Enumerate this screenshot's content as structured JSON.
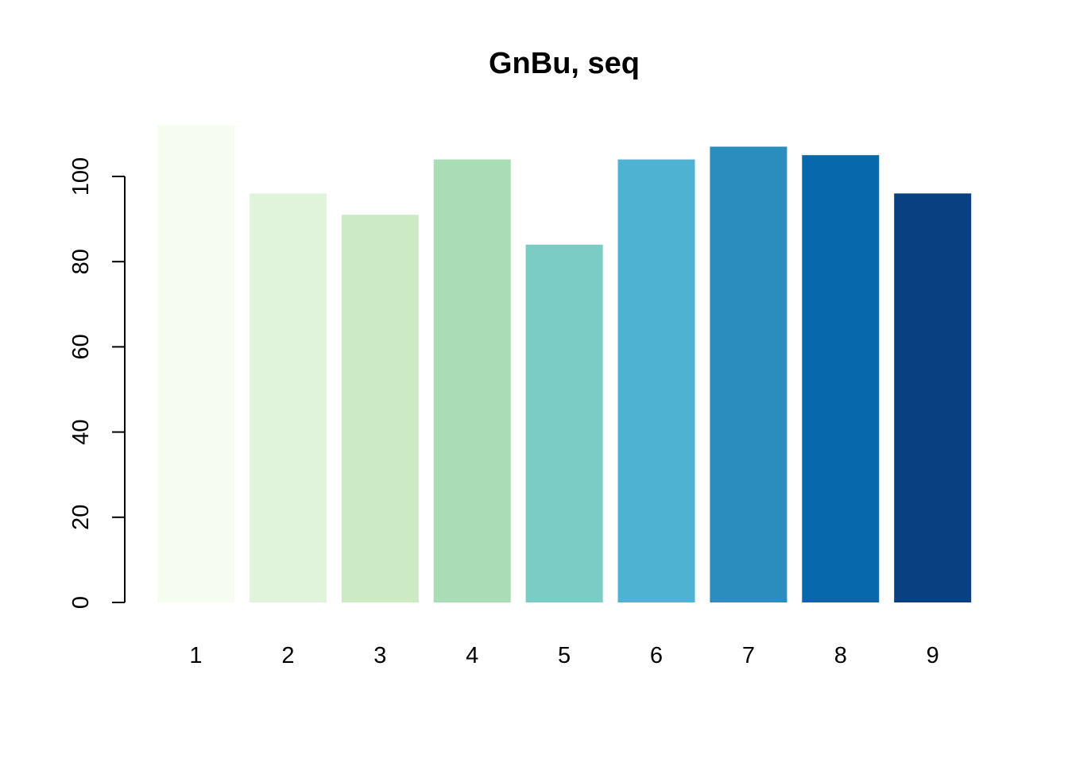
{
  "chart_data": {
    "type": "bar",
    "title": "GnBu, seq",
    "xlabel": "",
    "ylabel": "",
    "categories": [
      "1",
      "2",
      "3",
      "4",
      "5",
      "6",
      "7",
      "8",
      "9"
    ],
    "values": [
      112,
      96,
      91,
      104,
      84,
      104,
      107,
      105,
      96
    ],
    "colors": [
      "#F7FCF0",
      "#E0F3DB",
      "#CCEBC5",
      "#A8DDB5",
      "#7BCCC4",
      "#4EB3D3",
      "#2B8CBE",
      "#0868AC",
      "#084081"
    ],
    "ylim": [
      0,
      112
    ],
    "yticks": [
      0,
      20,
      40,
      60,
      80,
      100
    ],
    "ytick_labels": [
      "0",
      "20",
      "40",
      "60",
      "80",
      "100"
    ],
    "grid": false,
    "legend": "none"
  }
}
